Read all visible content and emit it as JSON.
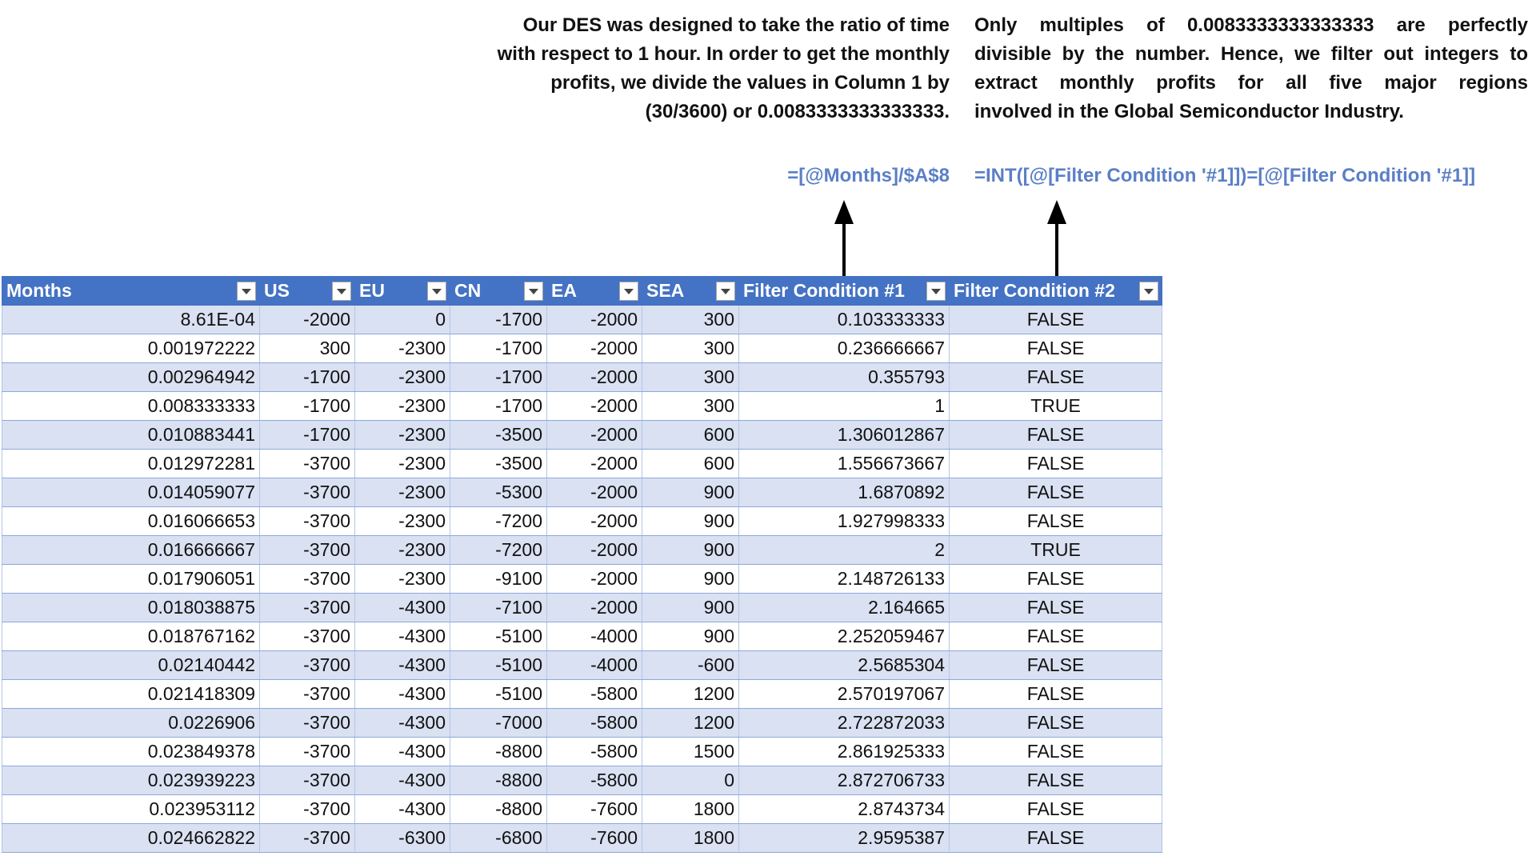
{
  "notes": [
    {
      "lines": [
        "Our DES was designed to take the ratio of time",
        "with respect to 1 hour. In order to get the monthly",
        "profits, we divide the values in Column 1 by",
        "(30/3600) or 0.0083333333333333."
      ],
      "formula": "=[@Months]/$A$8"
    },
    {
      "lines": [
        "Only multiples of 0.0083333333333333 are perfectly",
        "divisible by the number. Hence, we filter out integers to",
        "extract monthly profits for all five major regions",
        "involved in the Global Semiconductor Industry."
      ],
      "formula": "=INT([@[Filter Condition '#1]])=[@[Filter Condition '#1]]"
    }
  ],
  "table": {
    "columns": [
      "Months",
      "US",
      "EU",
      "CN",
      "EA",
      "SEA",
      "Filter Condition #1",
      "Filter Condition #2"
    ],
    "rows": [
      [
        "8.61E-04",
        "-2000",
        "0",
        "-1700",
        "-2000",
        "300",
        "0.103333333",
        "FALSE"
      ],
      [
        "0.001972222",
        "300",
        "-2300",
        "-1700",
        "-2000",
        "300",
        "0.236666667",
        "FALSE"
      ],
      [
        "0.002964942",
        "-1700",
        "-2300",
        "-1700",
        "-2000",
        "300",
        "0.355793",
        "FALSE"
      ],
      [
        "0.008333333",
        "-1700",
        "-2300",
        "-1700",
        "-2000",
        "300",
        "1",
        "TRUE"
      ],
      [
        "0.010883441",
        "-1700",
        "-2300",
        "-3500",
        "-2000",
        "600",
        "1.306012867",
        "FALSE"
      ],
      [
        "0.012972281",
        "-3700",
        "-2300",
        "-3500",
        "-2000",
        "600",
        "1.556673667",
        "FALSE"
      ],
      [
        "0.014059077",
        "-3700",
        "-2300",
        "-5300",
        "-2000",
        "900",
        "1.6870892",
        "FALSE"
      ],
      [
        "0.016066653",
        "-3700",
        "-2300",
        "-7200",
        "-2000",
        "900",
        "1.927998333",
        "FALSE"
      ],
      [
        "0.016666667",
        "-3700",
        "-2300",
        "-7200",
        "-2000",
        "900",
        "2",
        "TRUE"
      ],
      [
        "0.017906051",
        "-3700",
        "-2300",
        "-9100",
        "-2000",
        "900",
        "2.148726133",
        "FALSE"
      ],
      [
        "0.018038875",
        "-3700",
        "-4300",
        "-7100",
        "-2000",
        "900",
        "2.164665",
        "FALSE"
      ],
      [
        "0.018767162",
        "-3700",
        "-4300",
        "-5100",
        "-4000",
        "900",
        "2.252059467",
        "FALSE"
      ],
      [
        "0.02140442",
        "-3700",
        "-4300",
        "-5100",
        "-4000",
        "-600",
        "2.5685304",
        "FALSE"
      ],
      [
        "0.021418309",
        "-3700",
        "-4300",
        "-5100",
        "-5800",
        "1200",
        "2.570197067",
        "FALSE"
      ],
      [
        "0.0226906",
        "-3700",
        "-4300",
        "-7000",
        "-5800",
        "1200",
        "2.722872033",
        "FALSE"
      ],
      [
        "0.023849378",
        "-3700",
        "-4300",
        "-8800",
        "-5800",
        "1500",
        "2.861925333",
        "FALSE"
      ],
      [
        "0.023939223",
        "-3700",
        "-4300",
        "-8800",
        "-5800",
        "0",
        "2.872706733",
        "FALSE"
      ],
      [
        "0.023953112",
        "-3700",
        "-4300",
        "-8800",
        "-7600",
        "1800",
        "2.8743734",
        "FALSE"
      ],
      [
        "0.024662822",
        "-3700",
        "-6300",
        "-6800",
        "-7600",
        "1800",
        "2.9595387",
        "FALSE"
      ]
    ]
  }
}
